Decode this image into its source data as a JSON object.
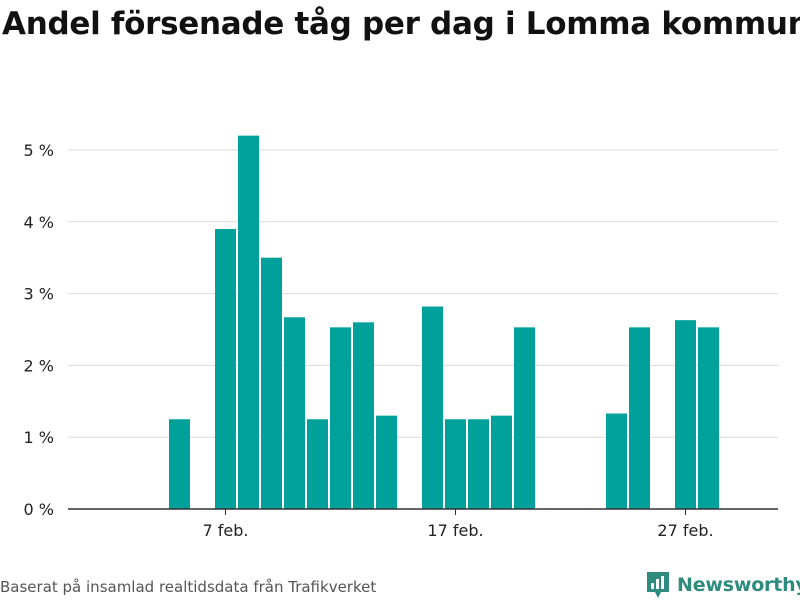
{
  "header": {
    "title": "Andel försenade tåg per dag i Lomma kommun"
  },
  "footer": {
    "source": "Baserat på insamlad realtidsdata från Trafikverket",
    "brand": "Newsworthy"
  },
  "colors": {
    "bar": "#00a19a",
    "grid": "#d9d9d9",
    "axis": "#333333",
    "brand": "#2e8b7e"
  },
  "icons": {
    "brand_logo": "newsworthy-logo-icon"
  },
  "chart_data": {
    "type": "bar",
    "title": "Andel försenade tåg per dag i Lomma kommun",
    "xlabel": "",
    "ylabel": "",
    "ylim": [
      0,
      5
    ],
    "yticks": [
      0,
      1,
      2,
      3,
      4,
      5
    ],
    "ytick_labels": [
      "0 %",
      "1 %",
      "2 %",
      "3 %",
      "4 %",
      "5 %"
    ],
    "grid": true,
    "categories": [
      "1 feb.",
      "2 feb.",
      "3 feb.",
      "4 feb.",
      "5 feb.",
      "6 feb.",
      "7 feb.",
      "8 feb.",
      "9 feb.",
      "10 feb.",
      "11 feb.",
      "12 feb.",
      "13 feb.",
      "14 feb.",
      "15 feb.",
      "16 feb.",
      "17 feb.",
      "18 feb.",
      "19 feb.",
      "20 feb.",
      "21 feb.",
      "22 feb.",
      "23 feb.",
      "24 feb.",
      "25 feb.",
      "26 feb.",
      "27 feb.",
      "28 feb."
    ],
    "values": [
      0,
      0,
      0,
      0,
      1.25,
      0,
      3.9,
      5.2,
      3.5,
      2.67,
      1.25,
      2.53,
      2.6,
      1.3,
      0,
      2.82,
      1.25,
      1.25,
      1.3,
      2.53,
      0,
      0,
      0,
      1.33,
      2.53,
      0,
      2.63,
      2.53
    ],
    "xtick_labels": [
      "7 feb.",
      "17 feb.",
      "27 feb."
    ]
  }
}
